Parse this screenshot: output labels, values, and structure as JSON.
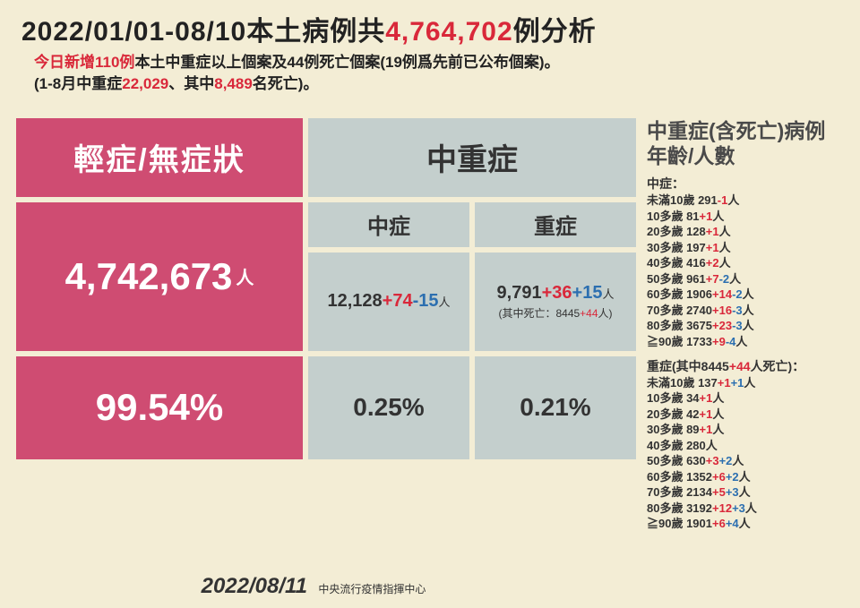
{
  "colors": {
    "background": "#f3edd5",
    "pink": "#cf4c72",
    "gray": "#c4cfcd",
    "red": "#d9283a",
    "blue": "#2c6fb0",
    "text": "#333333"
  },
  "title": {
    "prefix": "2022/01/01-08/10本土病例共",
    "highlight": "4,764,702",
    "suffix": "例分析"
  },
  "subtitle": {
    "line1_red": "今日新增110例",
    "line1_rest": "本土中重症以上個案及44例死亡個案(19例爲先前已公布個案)。",
    "line2_a": "(1-8月中重症",
    "line2_b": "22,029",
    "line2_c": "、其中",
    "line2_d": "8,489",
    "line2_e": "名死亡)。"
  },
  "table": {
    "mild_header": "輕症/無症狀",
    "severe_header": "中重症",
    "mid_sub": "中症",
    "sev_sub": "重症",
    "mild_count": "4,742,673",
    "unit": "人",
    "mid": {
      "base": "12,128",
      "plus": "+74",
      "minus": "-15"
    },
    "sev": {
      "base": "9,791",
      "plus": "+36",
      "minus": "+15",
      "death_prefix": "(其中死亡：",
      "death_base": "8445",
      "death_plus": "+44",
      "death_suffix": "人)"
    },
    "mild_pct": "99.54%",
    "mid_pct": "0.25%",
    "sev_pct": "0.21%"
  },
  "age": {
    "title": "中重症(含死亡)病例年齡/人數",
    "mid_title": "中症：",
    "mid_rows": [
      {
        "label": "未滿10歲",
        "v": "291",
        "d": "-1"
      },
      {
        "label": "10多歲",
        "v": "81",
        "d": "+1"
      },
      {
        "label": "20多歲",
        "v": "128",
        "d": "+1"
      },
      {
        "label": "30多歲",
        "v": "197",
        "d": "+1"
      },
      {
        "label": "40多歲",
        "v": "416",
        "d": "+2"
      },
      {
        "label": "50多歲",
        "v": "961",
        "d": "+7",
        "m": "-2"
      },
      {
        "label": "60多歲",
        "v": "1906",
        "d": "+14",
        "m": "-2"
      },
      {
        "label": "70多歲",
        "v": "2740",
        "d": "+16",
        "m": "-3"
      },
      {
        "label": "80多歲",
        "v": "3675",
        "d": "+23",
        "m": "-3"
      },
      {
        "label": "≧90歲",
        "v": "1733",
        "d": "+9",
        "m": "-4"
      }
    ],
    "sev_title_a": "重症(其中8445",
    "sev_title_b": "+44",
    "sev_title_c": "人死亡)：",
    "sev_rows": [
      {
        "label": "未滿10歲",
        "v": "137",
        "d": "+1",
        "m": "+1"
      },
      {
        "label": "10多歲",
        "v": "34",
        "d": "+1"
      },
      {
        "label": "20多歲",
        "v": "42",
        "d": "+1"
      },
      {
        "label": "30多歲",
        "v": "89",
        "d": "+1"
      },
      {
        "label": "40多歲",
        "v": "280"
      },
      {
        "label": "50多歲",
        "v": "630",
        "d": "+3",
        "m": "+2"
      },
      {
        "label": "60多歲",
        "v": "1352",
        "d": "+6",
        "m": "+2"
      },
      {
        "label": "70多歲",
        "v": "2134",
        "d": "+5",
        "m": "+3"
      },
      {
        "label": "80多歲",
        "v": "3192",
        "d": "+12",
        "m": "+3"
      },
      {
        "label": "≧90歲",
        "v": "1901",
        "d": "+6",
        "m": "+4"
      }
    ]
  },
  "footer": {
    "date": "2022/08/11",
    "source": "中央流行疫情指揮中心"
  }
}
